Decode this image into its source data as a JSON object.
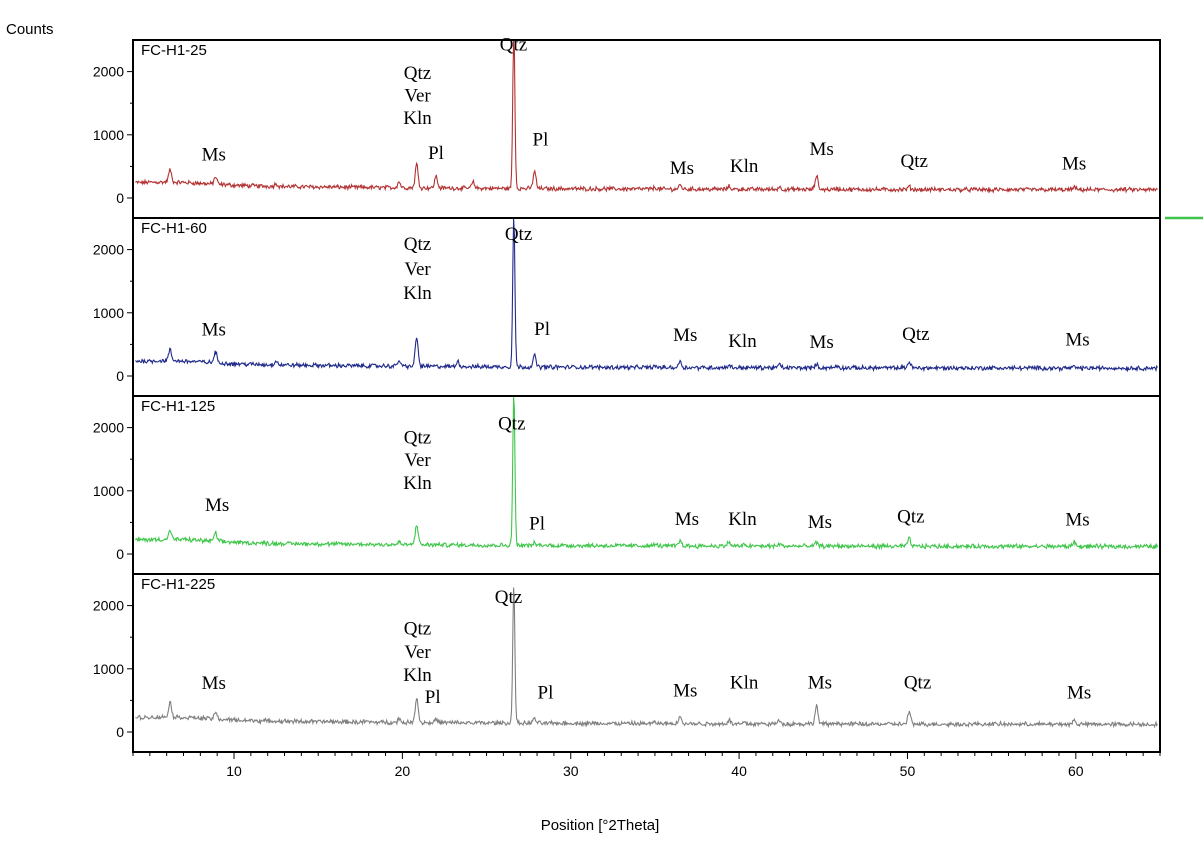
{
  "chart_data": {
    "type": "line",
    "ylabel": "Counts",
    "xlabel": "Position [°2Theta]",
    "xlim": [
      4,
      65
    ],
    "ylim": [
      0,
      2500
    ],
    "x_ticks": [
      "10",
      "20",
      "30",
      "40",
      "50",
      "60"
    ],
    "y_ticks": [
      "0",
      "1000",
      "2000"
    ],
    "grid": false,
    "panels": [
      {
        "name": "FC-H1-25",
        "color": "#b23232",
        "background": 210,
        "peaks": [
          [
            6.2,
            300
          ],
          [
            8.9,
            220
          ],
          [
            12.5,
            150
          ],
          [
            19.8,
            200
          ],
          [
            20.85,
            480
          ],
          [
            22.0,
            290
          ],
          [
            24.2,
            200
          ],
          [
            26.62,
            2600
          ],
          [
            27.85,
            380
          ],
          [
            35.0,
            130
          ],
          [
            36.5,
            170
          ],
          [
            39.4,
            150
          ],
          [
            40.3,
            110
          ],
          [
            42.4,
            140
          ],
          [
            44.6,
            320
          ],
          [
            45.8,
            120
          ],
          [
            50.1,
            150
          ],
          [
            55.0,
            90
          ],
          [
            59.9,
            140
          ]
        ],
        "annotations": [
          {
            "text": "Qtz",
            "x": 26.6,
            "y": 2330
          },
          {
            "text": "Qtz",
            "x": 20.9,
            "y": 1880
          },
          {
            "text": "Ver",
            "x": 20.9,
            "y": 1530
          },
          {
            "text": "Kln",
            "x": 20.9,
            "y": 1170
          },
          {
            "text": "Ms",
            "x": 8.8,
            "y": 590
          },
          {
            "text": "Pl",
            "x": 22.0,
            "y": 620
          },
          {
            "text": "Pl",
            "x": 28.2,
            "y": 830
          },
          {
            "text": "Ms",
            "x": 36.6,
            "y": 380
          },
          {
            "text": "Kln",
            "x": 40.3,
            "y": 410
          },
          {
            "text": "Ms",
            "x": 44.9,
            "y": 680
          },
          {
            "text": "Qtz",
            "x": 50.4,
            "y": 490
          },
          {
            "text": "Ms",
            "x": 59.9,
            "y": 450
          }
        ]
      },
      {
        "name": "FC-H1-60",
        "color": "#1f2a8a",
        "background": 200,
        "peaks": [
          [
            6.2,
            270
          ],
          [
            8.9,
            270
          ],
          [
            12.5,
            170
          ],
          [
            19.8,
            190
          ],
          [
            20.85,
            560
          ],
          [
            23.3,
            180
          ],
          [
            26.62,
            2500
          ],
          [
            27.85,
            280
          ],
          [
            35.0,
            120
          ],
          [
            36.5,
            200
          ],
          [
            39.4,
            140
          ],
          [
            40.3,
            100
          ],
          [
            42.4,
            150
          ],
          [
            44.6,
            150
          ],
          [
            45.8,
            130
          ],
          [
            50.1,
            200
          ],
          [
            54.6,
            100
          ],
          [
            59.9,
            120
          ]
        ],
        "annotations": [
          {
            "text": "Qtz",
            "x": 26.9,
            "y": 2150
          },
          {
            "text": "Qtz",
            "x": 20.9,
            "y": 1990
          },
          {
            "text": "Ver",
            "x": 20.9,
            "y": 1600
          },
          {
            "text": "Kln",
            "x": 20.9,
            "y": 1220
          },
          {
            "text": "Ms",
            "x": 8.8,
            "y": 640
          },
          {
            "text": "Pl",
            "x": 28.3,
            "y": 650
          },
          {
            "text": "Ms",
            "x": 36.8,
            "y": 550
          },
          {
            "text": "Kln",
            "x": 40.2,
            "y": 460
          },
          {
            "text": "Ms",
            "x": 44.9,
            "y": 440
          },
          {
            "text": "Qtz",
            "x": 50.5,
            "y": 570
          },
          {
            "text": "Ms",
            "x": 60.1,
            "y": 480
          }
        ]
      },
      {
        "name": "FC-H1-125",
        "color": "#3fc64a",
        "background": 190,
        "peaks": [
          [
            6.2,
            240
          ],
          [
            8.9,
            230
          ],
          [
            19.8,
            130
          ],
          [
            20.85,
            420
          ],
          [
            26.62,
            2500
          ],
          [
            27.85,
            130
          ],
          [
            35.0,
            120
          ],
          [
            36.5,
            180
          ],
          [
            39.4,
            160
          ],
          [
            40.3,
            110
          ],
          [
            42.4,
            130
          ],
          [
            44.6,
            150
          ],
          [
            45.8,
            110
          ],
          [
            50.1,
            220
          ],
          [
            59.9,
            170
          ]
        ],
        "annotations": [
          {
            "text": "Qtz",
            "x": 26.5,
            "y": 1970
          },
          {
            "text": "Qtz",
            "x": 20.9,
            "y": 1750
          },
          {
            "text": "Ver",
            "x": 20.9,
            "y": 1390
          },
          {
            "text": "Kln",
            "x": 20.9,
            "y": 1030
          },
          {
            "text": "Ms",
            "x": 9.0,
            "y": 680
          },
          {
            "text": "Pl",
            "x": 28.0,
            "y": 390
          },
          {
            "text": "Ms",
            "x": 36.9,
            "y": 460
          },
          {
            "text": "Kln",
            "x": 40.2,
            "y": 460
          },
          {
            "text": "Ms",
            "x": 44.8,
            "y": 410
          },
          {
            "text": "Qtz",
            "x": 50.2,
            "y": 500
          },
          {
            "text": "Ms",
            "x": 60.1,
            "y": 450
          }
        ]
      },
      {
        "name": "FC-H1-225",
        "color": "#7f7f7f",
        "background": 195,
        "peaks": [
          [
            6.2,
            340
          ],
          [
            8.9,
            200
          ],
          [
            17.8,
            110
          ],
          [
            19.8,
            150
          ],
          [
            20.85,
            500
          ],
          [
            22.0,
            150
          ],
          [
            26.62,
            2250
          ],
          [
            27.85,
            170
          ],
          [
            29.8,
            100
          ],
          [
            35.0,
            120
          ],
          [
            36.5,
            230
          ],
          [
            39.4,
            160
          ],
          [
            40.3,
            120
          ],
          [
            42.4,
            160
          ],
          [
            44.6,
            390
          ],
          [
            45.8,
            120
          ],
          [
            50.1,
            290
          ],
          [
            55.0,
            110
          ],
          [
            59.9,
            160
          ]
        ],
        "annotations": [
          {
            "text": "Qtz",
            "x": 26.3,
            "y": 2040
          },
          {
            "text": "Qtz",
            "x": 20.9,
            "y": 1540
          },
          {
            "text": "Ver",
            "x": 20.9,
            "y": 1170
          },
          {
            "text": "Kln",
            "x": 20.9,
            "y": 810
          },
          {
            "text": "Ms",
            "x": 8.8,
            "y": 680
          },
          {
            "text": "Pl",
            "x": 21.8,
            "y": 460
          },
          {
            "text": "Pl",
            "x": 28.5,
            "y": 530
          },
          {
            "text": "Ms",
            "x": 36.8,
            "y": 560
          },
          {
            "text": "Kln",
            "x": 40.3,
            "y": 690
          },
          {
            "text": "Ms",
            "x": 44.8,
            "y": 690
          },
          {
            "text": "Qtz",
            "x": 50.6,
            "y": 690
          },
          {
            "text": "Ms",
            "x": 60.2,
            "y": 530
          }
        ]
      }
    ],
    "marker_color": "#3fc64a"
  }
}
